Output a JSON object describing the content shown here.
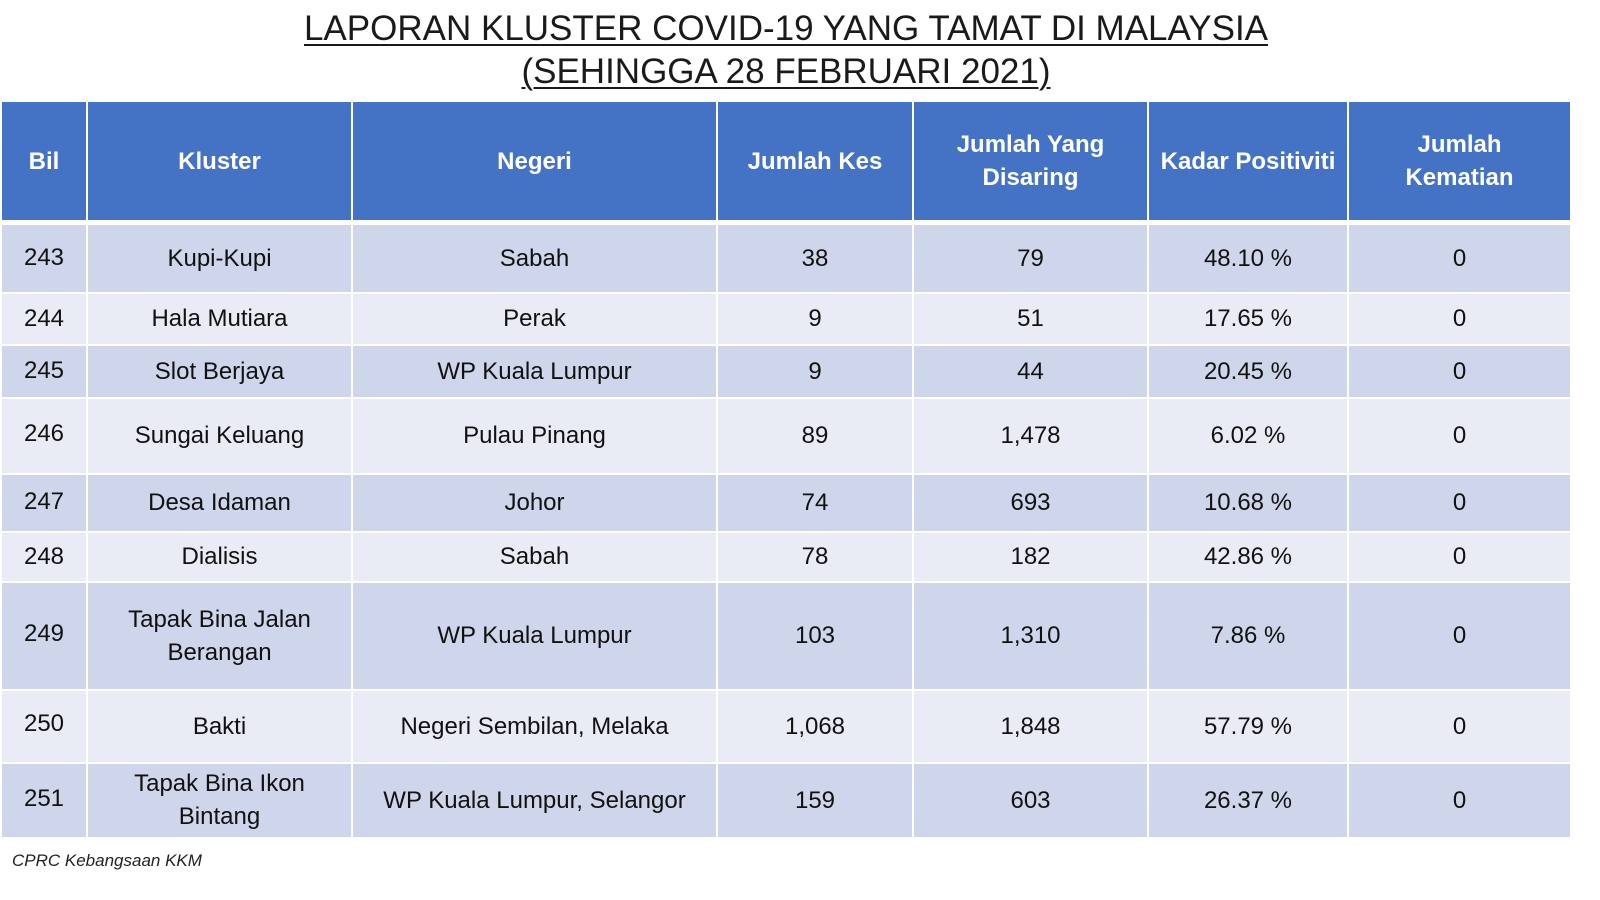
{
  "title": {
    "line1": "LAPORAN KLUSTER COVID-19 YANG TAMAT DI MALAYSIA",
    "line2": "(SEHINGGA  28 FEBRUARI 2021)"
  },
  "table": {
    "headers": {
      "bil": "Bil",
      "kluster": "Kluster",
      "negeri": "Negeri",
      "jumlah_kes": "Jumlah Kes",
      "jumlah_disaring": "Jumlah Yang Disaring",
      "kadar_positiviti": "Kadar Positiviti",
      "jumlah_kematian": "Jumlah Kematian"
    },
    "rows": [
      {
        "bil": "243",
        "kluster": "Kupi-Kupi",
        "negeri": "Sabah",
        "jumlah_kes": "38",
        "jumlah_disaring": "79",
        "kadar_positiviti": "48.10 %",
        "jumlah_kematian": "0"
      },
      {
        "bil": "244",
        "kluster": "Hala Mutiara",
        "negeri": "Perak",
        "jumlah_kes": "9",
        "jumlah_disaring": "51",
        "kadar_positiviti": "17.65 %",
        "jumlah_kematian": "0"
      },
      {
        "bil": "245",
        "kluster": "Slot Berjaya",
        "negeri": "WP Kuala Lumpur",
        "jumlah_kes": "9",
        "jumlah_disaring": "44",
        "kadar_positiviti": "20.45 %",
        "jumlah_kematian": "0"
      },
      {
        "bil": "246",
        "kluster": "Sungai Keluang",
        "negeri": "Pulau Pinang",
        "jumlah_kes": "89",
        "jumlah_disaring": "1,478",
        "kadar_positiviti": "6.02 %",
        "jumlah_kematian": "0"
      },
      {
        "bil": "247",
        "kluster": "Desa Idaman",
        "negeri": "Johor",
        "jumlah_kes": "74",
        "jumlah_disaring": "693",
        "kadar_positiviti": "10.68 %",
        "jumlah_kematian": "0"
      },
      {
        "bil": "248",
        "kluster": "Dialisis",
        "negeri": "Sabah",
        "jumlah_kes": "78",
        "jumlah_disaring": "182",
        "kadar_positiviti": "42.86 %",
        "jumlah_kematian": "0"
      },
      {
        "bil": "249",
        "kluster": "Tapak Bina Jalan Berangan",
        "negeri": "WP Kuala Lumpur",
        "jumlah_kes": "103",
        "jumlah_disaring": "1,310",
        "kadar_positiviti": "7.86 %",
        "jumlah_kematian": "0"
      },
      {
        "bil": "250",
        "kluster": "Bakti",
        "negeri": "Negeri Sembilan, Melaka",
        "jumlah_kes": "1,068",
        "jumlah_disaring": "1,848",
        "kadar_positiviti": "57.79 %",
        "jumlah_kematian": "0"
      },
      {
        "bil": "251",
        "kluster": "Tapak Bina Ikon Bintang",
        "negeri": "WP Kuala Lumpur, Selangor",
        "jumlah_kes": "159",
        "jumlah_disaring": "603",
        "kadar_positiviti": "26.37 %",
        "jumlah_kematian": "0"
      }
    ]
  },
  "footer": {
    "source": "CPRC Kebangsaan KKM"
  },
  "colors": {
    "header_bg": "#4472c4",
    "row_odd": "#cfd5ea",
    "row_even": "#e9ebf5"
  }
}
